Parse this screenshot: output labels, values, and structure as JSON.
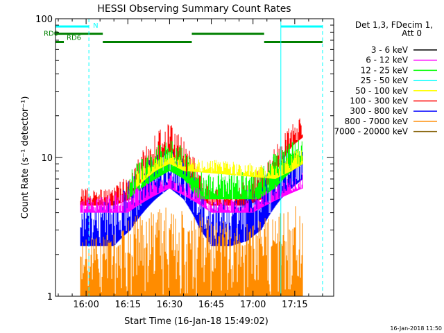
{
  "chart_data": {
    "type": "line",
    "title": "HESSI Observing Summary Count Rates",
    "xlabel": "Start Time (16-Jan-18 15:49:02)",
    "ylabel": "Count Rate (s⁻¹ detector⁻¹)",
    "x_ticks": [
      "16:00",
      "16:15",
      "16:30",
      "16:45",
      "17:00",
      "17:15"
    ],
    "y_ticks": [
      "1",
      "10",
      "100"
    ],
    "y_scale": "log",
    "ylim": [
      1,
      100
    ],
    "xlim": [
      "15:49",
      "17:29"
    ],
    "legend_placement": "right",
    "legend_title": "Det 1,3, FDecim 1,\nAtt 0",
    "series": [
      {
        "name": "3 - 6 keV",
        "color": "#000000"
      },
      {
        "name": "6 - 12 keV",
        "color": "#ff00ff"
      },
      {
        "name": "12 - 25 keV",
        "color": "#00ff00"
      },
      {
        "name": "25 - 50 keV",
        "color": "#00ffff"
      },
      {
        "name": "50 - 100 keV",
        "color": "#ffff00"
      },
      {
        "name": "100 - 300 keV",
        "color": "#ff0000"
      },
      {
        "name": "300 - 800 keV",
        "color": "#0000ff"
      },
      {
        "name": "800 - 7000 keV",
        "color": "#ff8c00"
      },
      {
        "name": "7000 - 20000 keV",
        "color": "#8b6914"
      }
    ],
    "envelopes": [
      {
        "series": "100 - 300 keV",
        "x": [
          "15:58",
          "16:10",
          "16:16",
          "16:25",
          "16:30",
          "16:35",
          "16:41",
          "16:45",
          "16:52",
          "16:58",
          "17:03",
          "17:10",
          "17:14",
          "17:18"
        ],
        "ymin": [
          4.5,
          4.5,
          5,
          9,
          11,
          8,
          5,
          4.5,
          4.5,
          4.5,
          5,
          9,
          12,
          14
        ],
        "ymax": [
          6,
          6,
          8,
          15,
          18,
          14,
          8,
          6,
          6,
          7,
          9,
          14,
          18,
          22
        ]
      },
      {
        "series": "300 - 800 keV",
        "x": [
          "15:58",
          "16:10",
          "16:16",
          "16:25",
          "16:30",
          "16:35",
          "16:41",
          "16:45",
          "16:52",
          "16:58",
          "17:03",
          "17:10",
          "17:14",
          "17:18"
        ],
        "ymin": [
          2.3,
          2.3,
          3,
          5,
          6,
          5,
          3,
          2.3,
          2.3,
          2.5,
          3,
          5,
          6,
          7
        ],
        "ymax": [
          5,
          5,
          7,
          11,
          12,
          10,
          6,
          5,
          5,
          6,
          7,
          10,
          12,
          12
        ]
      },
      {
        "series": "12 - 25 keV",
        "x": [
          "16:15",
          "16:25",
          "16:30",
          "16:35",
          "16:40",
          "17:02",
          "17:08",
          "17:14",
          "17:18"
        ],
        "ymin": [
          5,
          7,
          8,
          7,
          5,
          5,
          6,
          8,
          9
        ],
        "ymax": [
          8,
          12,
          14,
          12,
          8,
          8,
          11,
          13,
          14
        ]
      },
      {
        "series": "50 - 100 keV",
        "x": [
          "16:18",
          "16:25",
          "16:30",
          "16:35",
          "17:08",
          "17:14",
          "17:18"
        ],
        "ymin": [
          6,
          8,
          9,
          8,
          7,
          8,
          9
        ],
        "ymax": [
          8,
          10,
          11,
          10,
          9,
          11,
          12
        ]
      },
      {
        "series": "6 - 12 keV",
        "x": [
          "15:58",
          "16:15",
          "16:30",
          "16:45",
          "17:00",
          "17:18"
        ],
        "ymin": [
          4,
          4,
          6,
          4,
          4,
          6
        ],
        "ymax": [
          5,
          6,
          8,
          5,
          5,
          8
        ]
      },
      {
        "series": "800 - 7000 keV",
        "x": [
          "15:58",
          "16:10",
          "16:20",
          "16:30",
          "16:40",
          "16:50",
          "17:00",
          "17:10",
          "17:18"
        ],
        "ymin": [
          1,
          1,
          1,
          1,
          1,
          1,
          1,
          1,
          1
        ],
        "ymax": [
          2.5,
          3,
          4,
          4.5,
          4,
          3.5,
          3.5,
          4,
          5
        ]
      }
    ],
    "annotations": [
      {
        "label": "N",
        "x_start": "15:49",
        "x_end": "16:01",
        "color": "#00ffff",
        "level": 88
      },
      {
        "label": "",
        "x_start": "17:10",
        "x_end": "17:25",
        "color": "#00ffff",
        "level": 88
      },
      {
        "label": "RD0",
        "x_start": "15:49",
        "x_end": "16:06",
        "color": "#008000",
        "level": 78
      },
      {
        "label": "",
        "x_start": "16:06",
        "x_end": "16:38",
        "color": "#008000",
        "level": 68
      },
      {
        "label": "",
        "x_start": "16:38",
        "x_end": "17:04",
        "color": "#008000",
        "level": 78
      },
      {
        "label": "",
        "x_start": "17:04",
        "x_end": "17:25",
        "color": "#008000",
        "level": 68
      },
      {
        "label": "RD6",
        "x_start": "15:49",
        "x_end": "15:52",
        "color": "#008000",
        "level": 68
      }
    ],
    "vlines": [
      {
        "x": "15:49",
        "style": "solid",
        "color": "#00ffff"
      },
      {
        "x": "16:01",
        "style": "dashed",
        "color": "#00ffff"
      },
      {
        "x": "17:10",
        "style": "solid",
        "color": "#00ffff"
      },
      {
        "x": "17:25",
        "style": "dashed",
        "color": "#00ffff"
      }
    ]
  },
  "footer": {
    "timestamp": "16-Jan-2018 11:50"
  }
}
